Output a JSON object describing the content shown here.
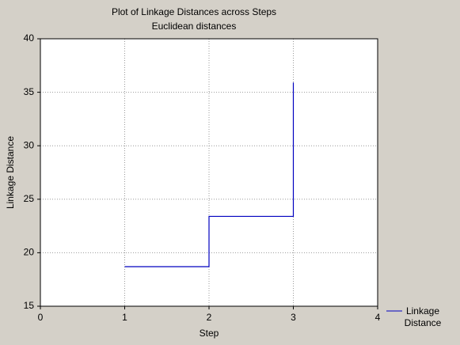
{
  "chart_data": {
    "type": "step",
    "title": "Plot of Linkage Distances across Steps",
    "subtitle": "Euclidean distances",
    "x_label": "Step",
    "y_label": "Linkage Distance",
    "x": [
      1,
      2,
      3
    ],
    "series": [
      {
        "name": "Linkage Distance",
        "color": "#0000c0",
        "values": [
          18.7,
          23.4,
          35.9
        ]
      }
    ],
    "xlim": [
      0,
      4
    ],
    "xticks": [
      0,
      1,
      2,
      3,
      4
    ],
    "ylim": [
      15,
      40
    ],
    "yticks": [
      15,
      20,
      25,
      30,
      35,
      40
    ],
    "grid": true,
    "legend": "bottom-right"
  }
}
